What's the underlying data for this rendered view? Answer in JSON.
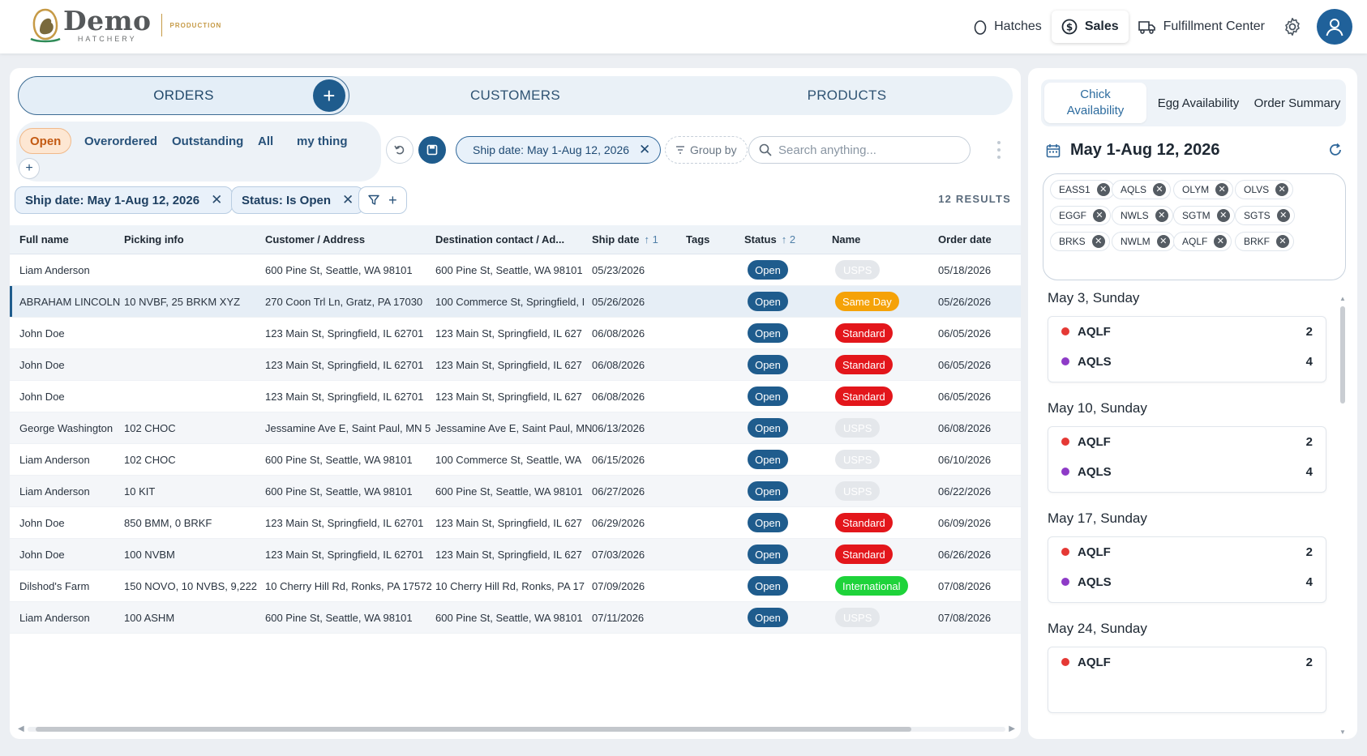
{
  "brand": {
    "name": "Demo",
    "sub": "HATCHERY",
    "env": "PRODUCTION"
  },
  "nav": [
    {
      "label": "Hatches"
    },
    {
      "label": "Sales",
      "active": true
    },
    {
      "label": "Fulfillment Center"
    }
  ],
  "seg_tabs": [
    "ORDERS",
    "CUSTOMERS",
    "PRODUCTS"
  ],
  "views": [
    "Open",
    "Overordered",
    "Outstanding",
    "All",
    "my thing"
  ],
  "toolbar": {
    "ship_chip": "Ship date: May 1-Aug 12, 2026",
    "group_by": "Group by",
    "search_placeholder": "Search anything..."
  },
  "filters": {
    "ship": "Ship date: May 1-Aug 12, 2026",
    "status": "Status: Is Open"
  },
  "results_label": "12 RESULTS",
  "table": {
    "columns": [
      "Full name",
      "Picking info",
      "Customer / Address",
      "Destination contact / Ad...",
      "Ship date",
      "Tags",
      "Status",
      "Name",
      "Order date"
    ],
    "sort_ship": "1",
    "sort_status": "2",
    "rows": [
      [
        "Liam Anderson",
        "",
        "600 Pine St, Seattle, WA 98101",
        "600 Pine St, Seattle, WA 98101",
        "05/23/2026",
        "",
        "Open",
        "USPS",
        "05/18/2026"
      ],
      [
        "ABRAHAM LINCOLN",
        "10 NVBF, 25 BRKM XYZ",
        "270 Coon Trl Ln, Gratz, PA 17030",
        "100 Commerce St, Springfield, I",
        "05/26/2026",
        "",
        "Open",
        "Same Day",
        "05/26/2026"
      ],
      [
        "John Doe",
        "",
        "123 Main St, Springfield, IL 62701",
        "123 Main St, Springfield, IL 627",
        "06/08/2026",
        "",
        "Open",
        "Standard",
        "06/05/2026"
      ],
      [
        "John Doe",
        "",
        "123 Main St, Springfield, IL 62701",
        "123 Main St, Springfield, IL 627",
        "06/08/2026",
        "",
        "Open",
        "Standard",
        "06/05/2026"
      ],
      [
        "John Doe",
        "",
        "123 Main St, Springfield, IL 62701",
        "123 Main St, Springfield, IL 627",
        "06/08/2026",
        "",
        "Open",
        "Standard",
        "06/05/2026"
      ],
      [
        "George Washington",
        "102 CHOC",
        "Jessamine Ave E, Saint Paul, MN 5",
        "Jessamine Ave E, Saint Paul, MN",
        "06/13/2026",
        "",
        "Open",
        "USPS",
        "06/08/2026"
      ],
      [
        "Liam Anderson",
        "102 CHOC",
        "600 Pine St, Seattle, WA 98101",
        "100 Commerce St, Seattle, WA",
        "06/15/2026",
        "",
        "Open",
        "USPS",
        "06/10/2026"
      ],
      [
        "Liam Anderson",
        "10 KIT",
        "600 Pine St, Seattle, WA 98101",
        "600 Pine St, Seattle, WA 98101",
        "06/27/2026",
        "",
        "Open",
        "USPS",
        "06/22/2026"
      ],
      [
        "John Doe",
        "850 BMM, 0 BRKF",
        "123 Main St, Springfield, IL 62701",
        "123 Main St, Springfield, IL 627",
        "06/29/2026",
        "",
        "Open",
        "Standard",
        "06/09/2026"
      ],
      [
        "John Doe",
        "100 NVBM",
        "123 Main St, Springfield, IL 62701",
        "123 Main St, Springfield, IL 627",
        "07/03/2026",
        "",
        "Open",
        "Standard",
        "06/26/2026"
      ],
      [
        "Dilshod's Farm",
        "150 NOVO, 10 NVBS, 9,222",
        "10 Cherry Hill Rd, Ronks, PA 17572",
        "10 Cherry Hill Rd, Ronks, PA 17",
        "07/09/2026",
        "",
        "Open",
        "International",
        "07/08/2026"
      ],
      [
        "Liam Anderson",
        "100 ASHM",
        "600 Pine St, Seattle, WA 98101",
        "600 Pine St, Seattle, WA 98101",
        "07/11/2026",
        "",
        "Open",
        "USPS",
        "07/08/2026"
      ]
    ]
  },
  "side": {
    "tabs": [
      "Chick Availability",
      "Egg Availability",
      "Order Summary"
    ],
    "range": "May 1-Aug 12, 2026",
    "tags": [
      "EASS1",
      "AQLS",
      "OLYM",
      "OLVS",
      "EGGF",
      "NWLS",
      "SGTM",
      "SGTS",
      "BRKS",
      "NWLM",
      "AQLF",
      "BRKF"
    ],
    "days": [
      {
        "title": "May 3, Sunday",
        "items": [
          {
            "name": "AQLF",
            "qty": "2"
          },
          {
            "name": "AQLS",
            "qty": "4"
          }
        ]
      },
      {
        "title": "May 10, Sunday",
        "items": [
          {
            "name": "AQLF",
            "qty": "2"
          },
          {
            "name": "AQLS",
            "qty": "4"
          }
        ]
      },
      {
        "title": "May 17, Sunday",
        "items": [
          {
            "name": "AQLF",
            "qty": "2"
          },
          {
            "name": "AQLS",
            "qty": "4"
          }
        ]
      },
      {
        "title": "May 24, Sunday",
        "items": [
          {
            "name": "AQLF",
            "qty": "2"
          }
        ]
      }
    ]
  },
  "colors": {
    "primary": "#1f5c8d",
    "usps": "#e4e7eb",
    "same_day": "#f5a208",
    "standard": "#e3161b",
    "international": "#1ed33a",
    "dot_aqlf": "#e53935",
    "dot_aqls": "#8e3bc7"
  },
  "icons": [
    "egg-icon",
    "dollar-icon",
    "truck-icon",
    "gear-icon",
    "user-icon",
    "plus-icon",
    "undo-icon",
    "save-icon",
    "close-icon",
    "filter-icon",
    "search-icon",
    "more-vertical-icon",
    "calendar-icon",
    "refresh-icon"
  ]
}
